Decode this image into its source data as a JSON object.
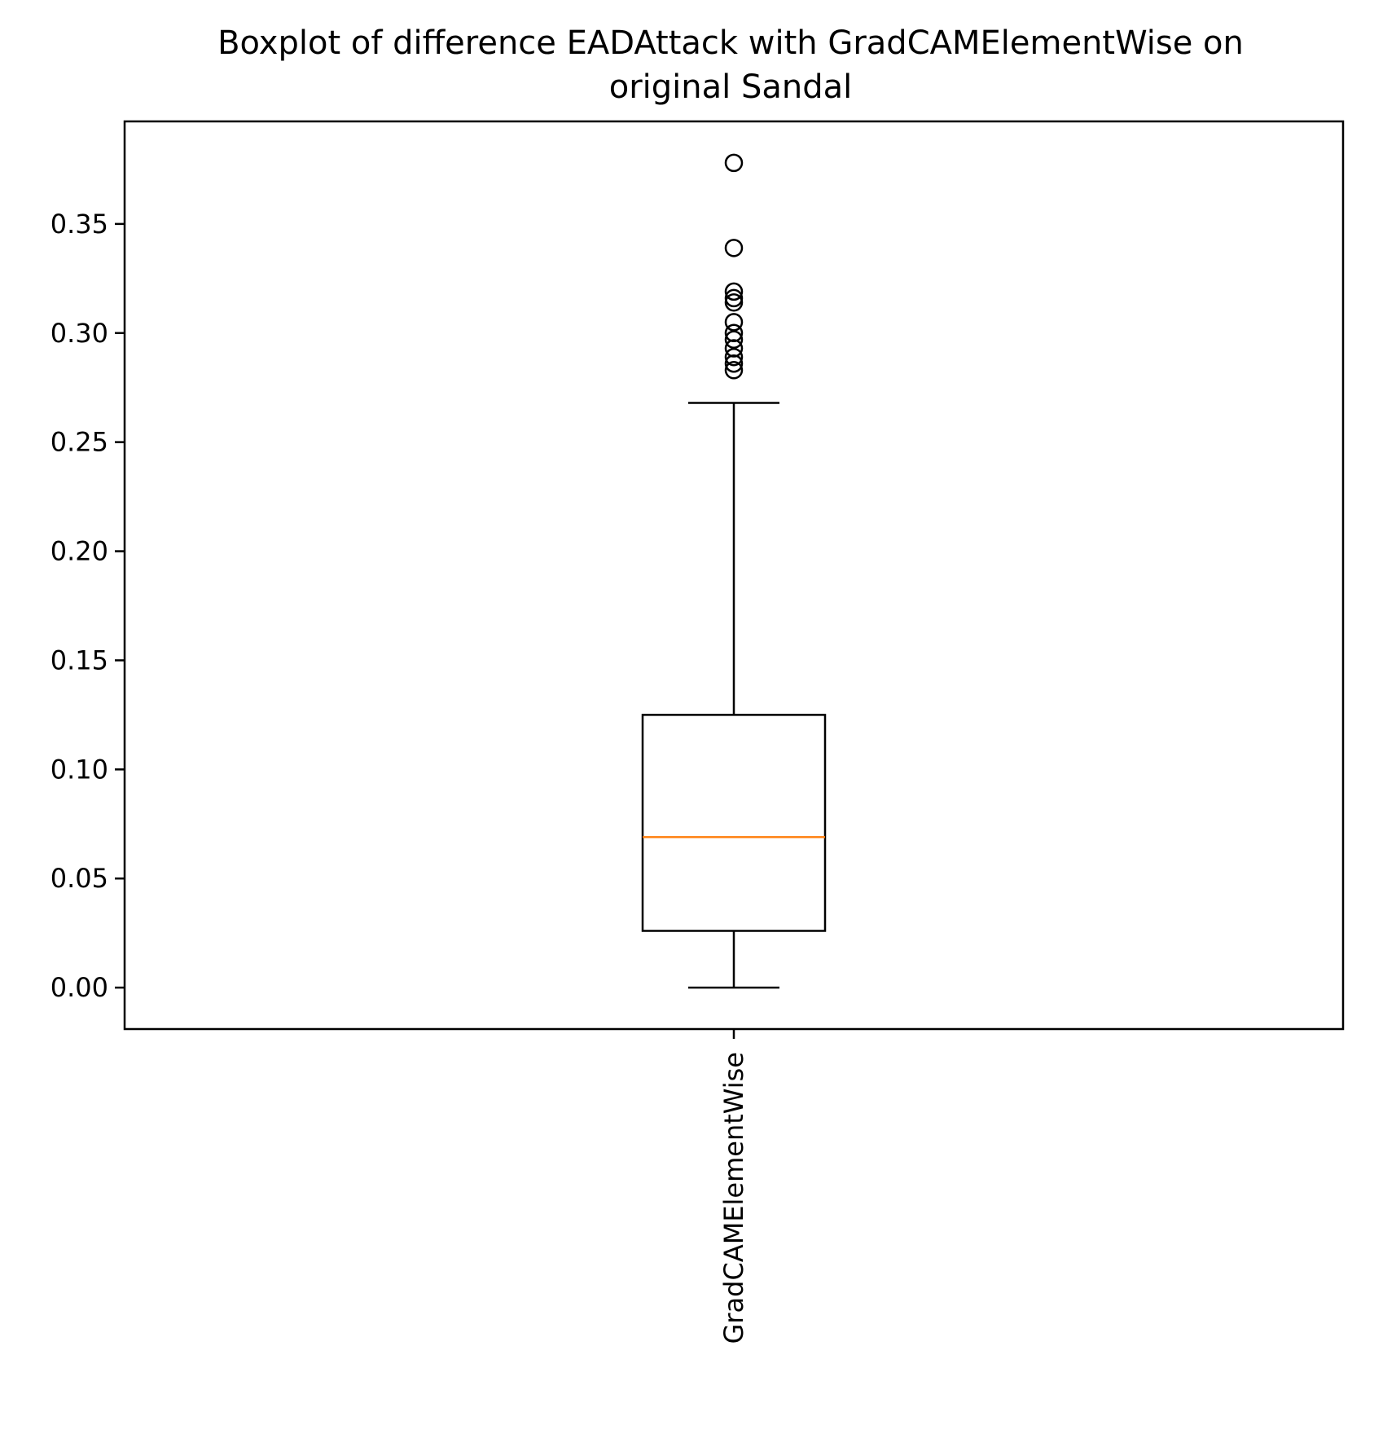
{
  "chart_data": {
    "type": "boxplot",
    "title_lines": [
      "Boxplot of difference EADAttack with GradCAMElementWise on",
      "original Sandal"
    ],
    "xlabel": "",
    "ylabel": "",
    "categories": [
      "GradCAMElementWise"
    ],
    "ylim": [
      -0.019,
      0.397
    ],
    "yticks": [
      0.0,
      0.05,
      0.1,
      0.15,
      0.2,
      0.25,
      0.3,
      0.35
    ],
    "ytick_labels": [
      "0.00",
      "0.05",
      "0.10",
      "0.15",
      "0.20",
      "0.25",
      "0.30",
      "0.35"
    ],
    "grid": false,
    "boxes": [
      {
        "category": "GradCAMElementWise",
        "whisker_low": 0.0,
        "q1": 0.026,
        "median": 0.069,
        "q3": 0.125,
        "whisker_high": 0.268,
        "outliers": [
          0.283,
          0.286,
          0.289,
          0.293,
          0.297,
          0.3,
          0.305,
          0.314,
          0.316,
          0.319,
          0.339,
          0.378
        ]
      }
    ],
    "colors": {
      "box": "#000000",
      "median": "#ff7f0e",
      "axes": "#000000",
      "background": "#ffffff"
    }
  }
}
